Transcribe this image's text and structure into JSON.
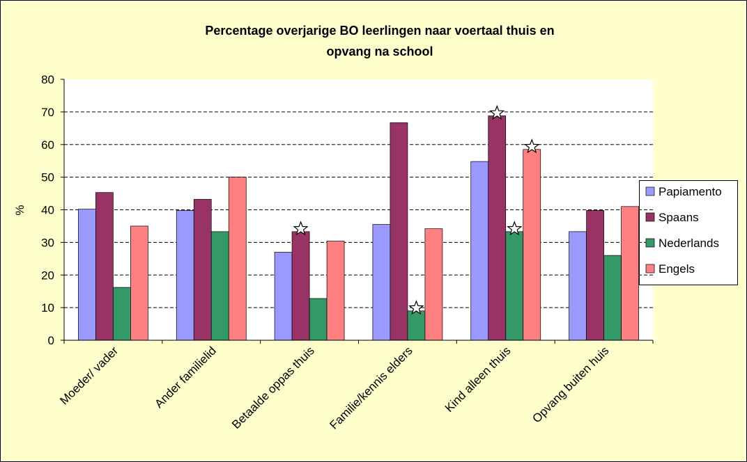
{
  "chart_data": {
    "type": "bar",
    "title": [
      "Percentage overjarige BO leerlingen naar voertaal thuis en",
      "opvang na school"
    ],
    "y_label": "%",
    "categories": [
      "Moeder/ vader",
      "Ander familielid",
      "Betaalde oppas thuis",
      "Familie/kennis elders",
      "Kind alleen thuis",
      "Opvang buiten huis"
    ],
    "series": [
      {
        "name": "Papiamento",
        "color": "#9999ff",
        "values": [
          40.2,
          39.8,
          27,
          35.5,
          54.8,
          33.3
        ],
        "starred": [
          false,
          false,
          false,
          false,
          false,
          false
        ]
      },
      {
        "name": "Spaans",
        "color": "#993366",
        "values": [
          45.3,
          43.2,
          33.3,
          66.7,
          68.8,
          39.8
        ],
        "starred": [
          false,
          false,
          true,
          false,
          true,
          false
        ]
      },
      {
        "name": "Nederlands",
        "color": "#339966",
        "values": [
          16.2,
          33.3,
          12.8,
          9,
          33.3,
          26
        ],
        "starred": [
          false,
          false,
          false,
          true,
          true,
          false
        ]
      },
      {
        "name": "Engels",
        "color": "#ff8080",
        "values": [
          35,
          50,
          30.4,
          34.2,
          58.5,
          41
        ],
        "starred": [
          false,
          false,
          false,
          false,
          true,
          false
        ]
      }
    ],
    "ylim": [
      0,
      80
    ],
    "yticks": [
      0,
      10,
      20,
      30,
      40,
      50,
      60,
      70,
      80
    ],
    "grid": true,
    "legend": "right"
  }
}
